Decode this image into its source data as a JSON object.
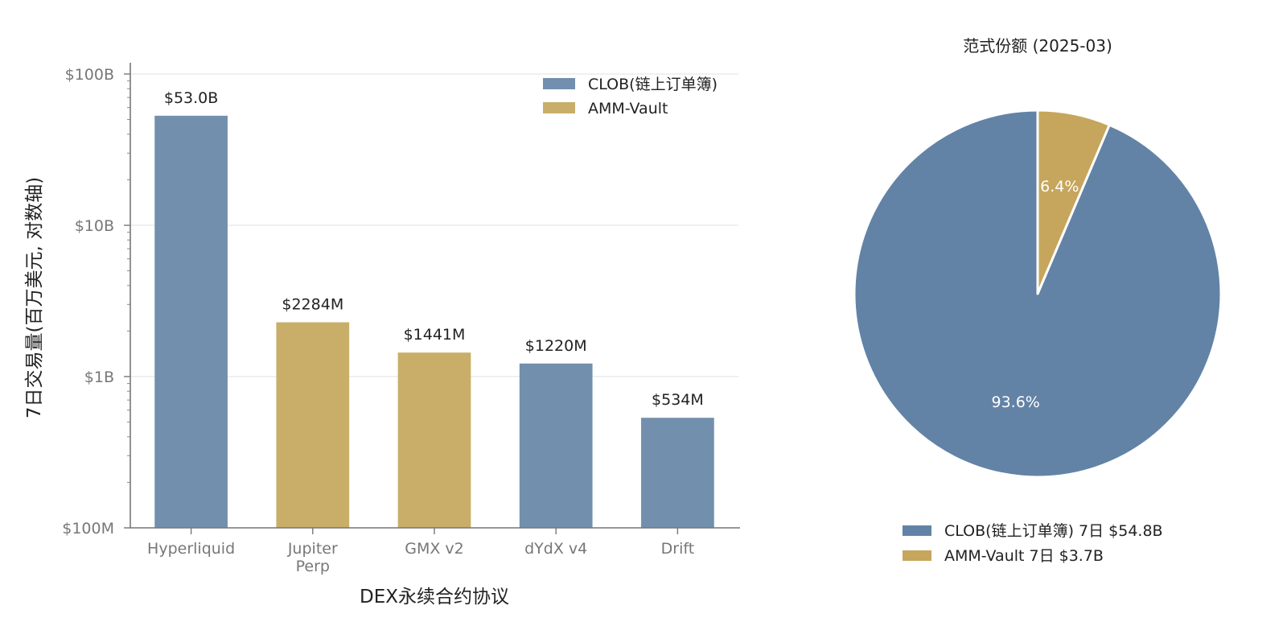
{
  "colors": {
    "clob": "#7290ad",
    "amm": "#c9ae6a",
    "pie_clob": "#6283a6",
    "pie_amm": "#c6a65d"
  },
  "chart_data": [
    {
      "type": "bar",
      "xlabel": "DEX永续合约协议",
      "ylabel": "7日交易量(百万美元, 对数轴)",
      "y_scale": "log",
      "ylim": [
        100,
        100000
      ],
      "y_ticks": [
        {
          "value": 100,
          "label": "$100M"
        },
        {
          "value": 1000,
          "label": "$1B"
        },
        {
          "value": 10000,
          "label": "$10B"
        },
        {
          "value": 100000,
          "label": "$100B"
        }
      ],
      "grid": true,
      "legend": {
        "placement": "top-right",
        "entries": [
          {
            "label": "CLOB(链上订单簿)",
            "series": "clob"
          },
          {
            "label": "AMM-Vault",
            "series": "amm"
          }
        ]
      },
      "bars": [
        {
          "category_lines": [
            "Hyperliquid"
          ],
          "value": 53000,
          "label": "$53.0B",
          "series": "clob"
        },
        {
          "category_lines": [
            "Jupiter",
            "Perp"
          ],
          "value": 2284,
          "label": "$2284M",
          "series": "amm"
        },
        {
          "category_lines": [
            "GMX v2"
          ],
          "value": 1441,
          "label": "$1441M",
          "series": "amm"
        },
        {
          "category_lines": [
            "dYdX v4"
          ],
          "value": 1220,
          "label": "$1220M",
          "series": "clob"
        },
        {
          "category_lines": [
            "Drift"
          ],
          "value": 534,
          "label": "$534M",
          "series": "clob"
        }
      ]
    },
    {
      "type": "pie",
      "title": "范式份额 (2025-03)",
      "legend": {
        "placement": "bottom"
      },
      "slices": [
        {
          "name": "CLOB(链上订单簿) 7日 $54.8B",
          "value": 93.6,
          "label": "93.6%",
          "series": "clob"
        },
        {
          "name": "AMM-Vault 7日 $3.7B",
          "value": 6.4,
          "label": "6.4%",
          "series": "amm"
        }
      ]
    }
  ]
}
